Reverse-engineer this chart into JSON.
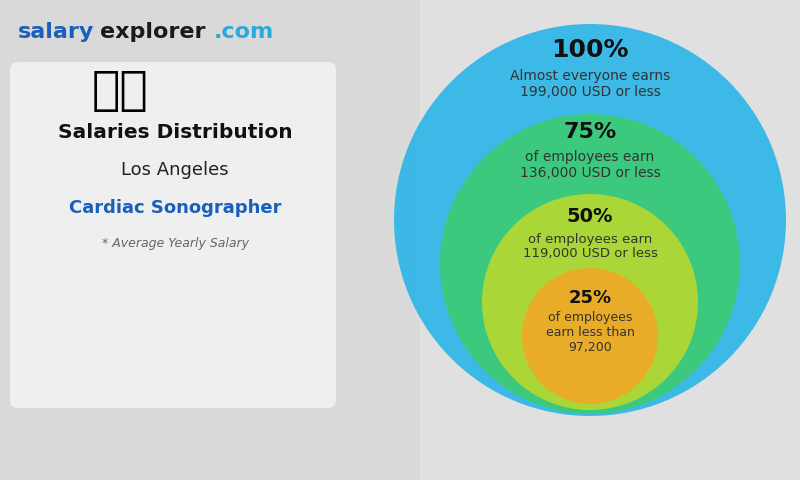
{
  "site_bold1": "salary",
  "site_bold2": "explorer",
  "site_bold3": ".com",
  "site_color1": "#1a5fba",
  "site_color2": "#1a1a1a",
  "site_color3": "#29aadd",
  "heading1": "Salaries Distribution",
  "heading2": "Los Angeles",
  "heading3": "Cardiac Sonographer",
  "subheading": "* Average Yearly Salary",
  "heading1_color": "#111111",
  "heading2_color": "#222222",
  "heading3_color": "#1a5fba",
  "subheading_color": "#666666",
  "bg_color": "#d8d8d8",
  "circle_100_color": "#2bb5e8",
  "circle_75_color": "#3ecb72",
  "circle_50_color": "#b8d830",
  "circle_25_color": "#f0a828",
  "label_pct_color": "#111111",
  "label_text_color": "#333333",
  "pct_100": "100%",
  "pct_75": "75%",
  "pct_50": "50%",
  "pct_25": "25%",
  "text_100_l1": "Almost everyone earns",
  "text_100_l2": "199,000 USD or less",
  "text_75_l1": "of employees earn",
  "text_75_l2": "136,000 USD or less",
  "text_50_l1": "of employees earn",
  "text_50_l2": "119,000 USD or less",
  "text_25_l1": "of employees",
  "text_25_l2": "earn less than",
  "text_25_l3": "97,200"
}
